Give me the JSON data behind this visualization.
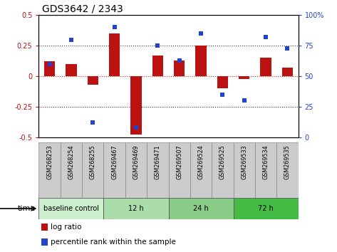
{
  "title": "GDS3642 / 2343",
  "samples": [
    "GSM268253",
    "GSM268254",
    "GSM268255",
    "GSM269467",
    "GSM269469",
    "GSM269471",
    "GSM269507",
    "GSM269524",
    "GSM269525",
    "GSM269533",
    "GSM269534",
    "GSM269535"
  ],
  "log_ratio": [
    0.12,
    0.1,
    -0.07,
    0.35,
    -0.48,
    0.17,
    0.13,
    0.25,
    -0.1,
    -0.02,
    0.15,
    0.07
  ],
  "percentile_rank": [
    60,
    80,
    12,
    90,
    8,
    75,
    63,
    85,
    35,
    30,
    82,
    73
  ],
  "bar_color": "#bb1111",
  "dot_color": "#2244cc",
  "ylim_left": [
    -0.5,
    0.5
  ],
  "ylim_right": [
    0,
    100
  ],
  "yticks_left": [
    -0.5,
    -0.25,
    0,
    0.25,
    0.5
  ],
  "ytick_labels_left": [
    "-0.5",
    "-0.25",
    "0",
    "0.25",
    "0.5"
  ],
  "yticks_right": [
    0,
    25,
    50,
    75,
    100
  ],
  "ytick_labels_right": [
    "0",
    "25",
    "50",
    "75",
    "100%"
  ],
  "hlines": [
    0.25,
    0.0,
    -0.25
  ],
  "hline_zero_color": "#cc2222",
  "hline_other_color": "#333333",
  "groups": [
    {
      "label": "baseline control",
      "start": 0,
      "end": 3,
      "color": "#cceecc"
    },
    {
      "label": "12 h",
      "start": 3,
      "end": 6,
      "color": "#aaddaa"
    },
    {
      "label": "24 h",
      "start": 6,
      "end": 9,
      "color": "#88cc88"
    },
    {
      "label": "72 h",
      "start": 9,
      "end": 12,
      "color": "#44bb44"
    }
  ],
  "legend_items": [
    {
      "label": "log ratio",
      "color": "#bb1111"
    },
    {
      "label": "percentile rank within the sample",
      "color": "#2244cc"
    }
  ],
  "time_label": "time",
  "sample_box_color": "#cccccc",
  "sample_box_edge": "#888888",
  "bar_width": 0.5
}
